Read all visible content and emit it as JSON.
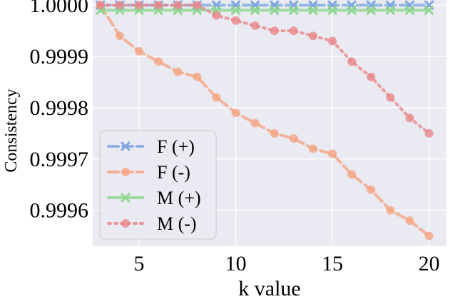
{
  "chart_data": {
    "type": "line",
    "title": "",
    "xlabel": "k value",
    "ylabel": "Consistency",
    "xlim": [
      2.6,
      20.9
    ],
    "ylim": [
      0.99953,
      1.00001
    ],
    "xticks": [
      5,
      10,
      15,
      20
    ],
    "xtick_labels": [
      "5",
      "10",
      "15",
      "20"
    ],
    "yticks": [
      0.9996,
      0.9997,
      0.9998,
      0.9999,
      1.0
    ],
    "ytick_labels": [
      "0.9996",
      "0.9997",
      "0.9998",
      "0.9999",
      "1.0000"
    ],
    "grid": true,
    "legend_position": "lower-left",
    "x": [
      3,
      4,
      5,
      6,
      7,
      8,
      9,
      10,
      11,
      12,
      13,
      14,
      15,
      16,
      17,
      18,
      19,
      20
    ],
    "series": [
      {
        "name": "F (+)",
        "color": "#7ea6e0",
        "marker": "x",
        "linestyle": "dashed",
        "values": [
          1.0,
          1.0,
          1.0,
          1.0,
          1.0,
          1.0,
          1.0,
          1.0,
          1.0,
          1.0,
          1.0,
          1.0,
          1.0,
          1.0,
          1.0,
          1.0,
          1.0,
          1.0
        ]
      },
      {
        "name": "F (-)",
        "color": "#f4a582",
        "marker": "o",
        "linestyle": "dashed",
        "values": [
          1.0,
          0.99994,
          0.99991,
          0.99989,
          0.99987,
          0.99986,
          0.99982,
          0.99979,
          0.99977,
          0.99975,
          0.99974,
          0.99972,
          0.99971,
          0.99967,
          0.99964,
          0.9996,
          0.99958,
          0.99955
        ]
      },
      {
        "name": "M (+)",
        "color": "#8fd68f",
        "marker": "x",
        "linestyle": "solid",
        "values": [
          0.99999,
          0.99999,
          0.99999,
          0.99999,
          0.99999,
          0.99999,
          0.99999,
          0.99999,
          0.99999,
          0.99999,
          0.99999,
          0.99999,
          0.99999,
          0.99999,
          0.99999,
          0.99999,
          0.99999,
          0.99999
        ]
      },
      {
        "name": "M (-)",
        "color": "#e8878a",
        "marker": "o",
        "linestyle": "dotted",
        "values": [
          1.0,
          1.0,
          1.0,
          1.0,
          1.0,
          1.0,
          0.99998,
          0.99997,
          0.99996,
          0.99995,
          0.99995,
          0.99994,
          0.99993,
          0.99989,
          0.99986,
          0.99982,
          0.99978,
          0.99975
        ]
      }
    ]
  }
}
